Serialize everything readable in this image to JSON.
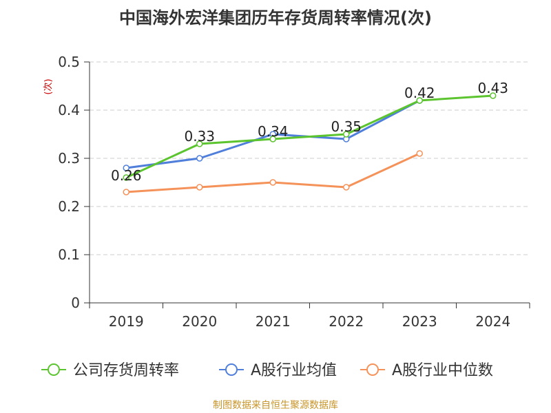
{
  "chart_data": {
    "type": "line",
    "title": "中国海外宏洋集团历年存货周转率情况(次)",
    "ylabel": "(次)",
    "ylim": [
      0,
      0.5
    ],
    "yticks": [
      0,
      0.1,
      0.2,
      0.3,
      0.4,
      0.5
    ],
    "ytick_labels": [
      "0",
      "0.1",
      "0.2",
      "0.3",
      "0.4",
      "0.5"
    ],
    "categories": [
      "2019",
      "2020",
      "2021",
      "2022",
      "2023",
      "2024"
    ],
    "grid": true,
    "legend_position": "bottom",
    "series": [
      {
        "name": "公司存货周转率",
        "color": "#5bc42e",
        "values": [
          0.26,
          0.33,
          0.34,
          0.35,
          0.42,
          0.43
        ],
        "labels": [
          "0.26",
          "0.33",
          "0.34",
          "0.35",
          "0.42",
          "0.43"
        ]
      },
      {
        "name": "A股行业均值",
        "color": "#4f7fdb",
        "values": [
          0.28,
          0.3,
          0.35,
          0.34,
          0.42,
          null
        ]
      },
      {
        "name": "A股行业中位数",
        "color": "#f4925a",
        "values": [
          0.23,
          0.24,
          0.25,
          0.24,
          0.31,
          null
        ]
      }
    ]
  },
  "footer": "制图数据来自恒生聚源数据库"
}
